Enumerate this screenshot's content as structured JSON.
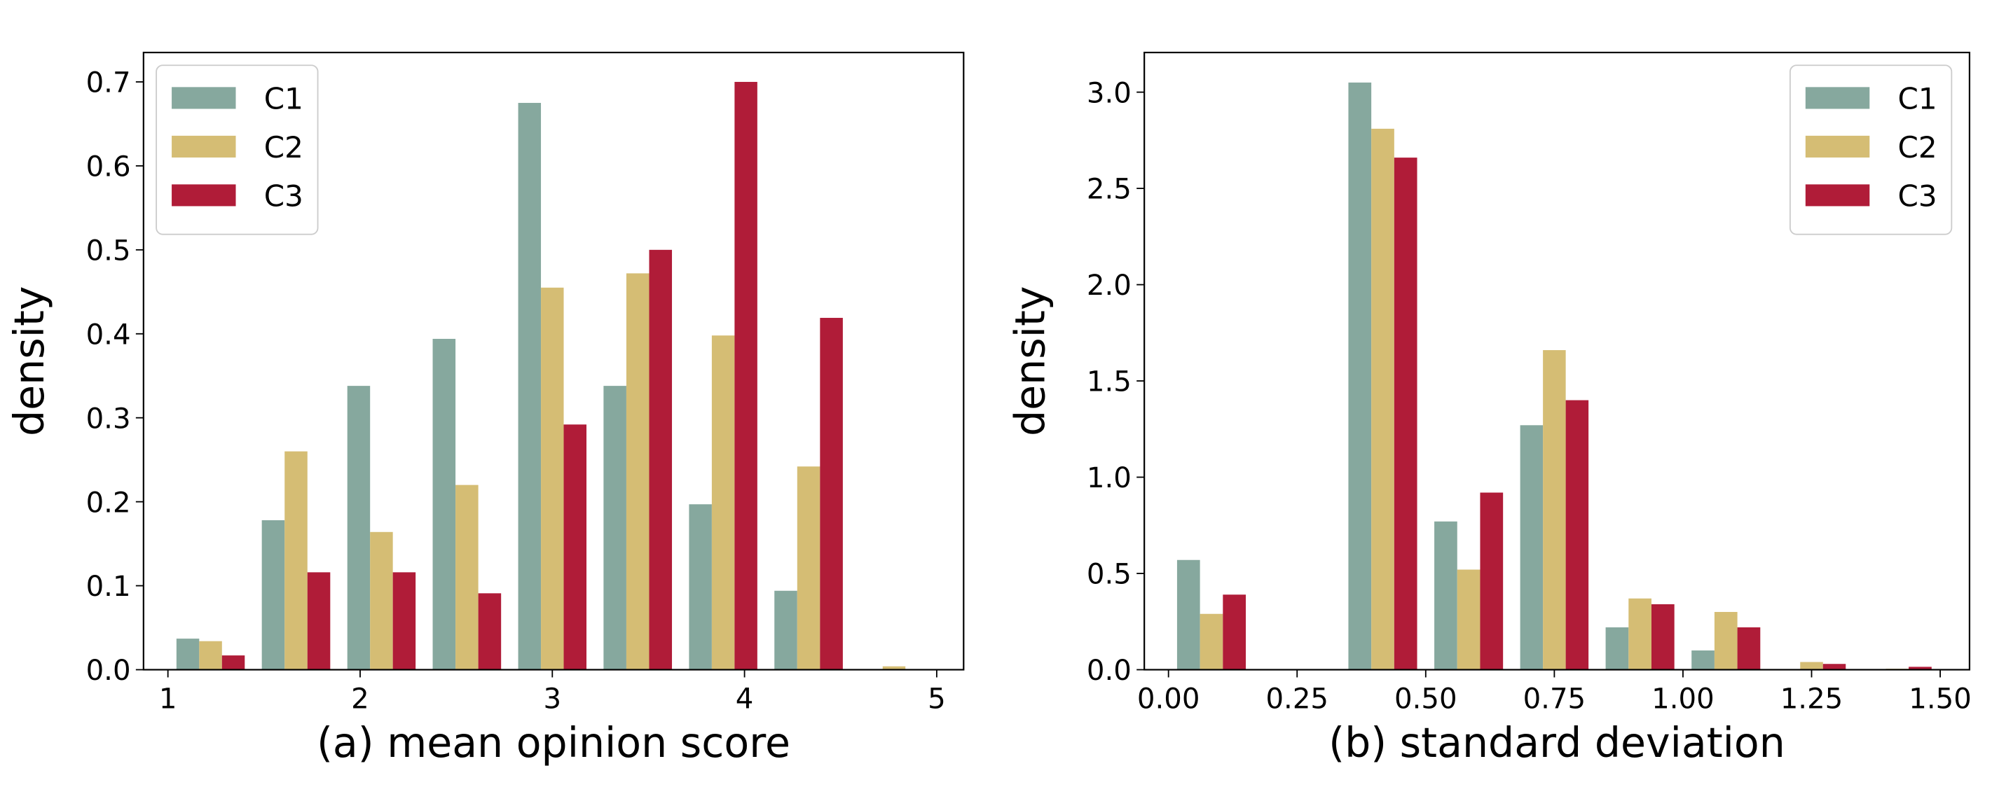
{
  "chart_data": [
    {
      "type": "histogram",
      "xlabel": "(a) mean opinion score",
      "ylabel": "density",
      "bins": [
        1,
        1.444,
        1.889,
        2.333,
        2.778,
        3.222,
        3.667,
        4.111,
        4.556,
        5
      ],
      "series": [
        {
          "name": "C1",
          "color": "#86a89e",
          "values": [
            0.037,
            0.178,
            0.338,
            0.394,
            0.675,
            0.338,
            0.197,
            0.094,
            0
          ]
        },
        {
          "name": "C2",
          "color": "#d5bd74",
          "values": [
            0.034,
            0.26,
            0.164,
            0.22,
            0.455,
            0.472,
            0.398,
            0.242,
            0.004
          ]
        },
        {
          "name": "C3",
          "color": "#b01c38",
          "values": [
            0.017,
            0.116,
            0.116,
            0.091,
            0.292,
            0.5,
            0.7,
            0.419,
            0
          ]
        }
      ],
      "xlim": [
        0.873,
        5.14
      ],
      "xticks": [
        1,
        2,
        3,
        4,
        5
      ],
      "ylim": [
        0,
        0.735
      ],
      "yticks": [
        {
          "value": 0,
          "label": "0.0"
        },
        0.1,
        0.2,
        0.3,
        0.4,
        0.5,
        0.6,
        0.7
      ],
      "legend": "upper left"
    },
    {
      "type": "histogram",
      "xlabel": "(b) standard deviation",
      "ylabel": "density",
      "bins": [
        0,
        0.167,
        0.333,
        0.5,
        0.667,
        0.833,
        1,
        1.167,
        1.333,
        1.5
      ],
      "series": [
        {
          "name": "C1",
          "color": "#86a89e",
          "values": [
            0.57,
            0,
            3.05,
            0.77,
            1.27,
            0.22,
            0.1,
            0,
            0
          ]
        },
        {
          "name": "C2",
          "color": "#d5bd74",
          "values": [
            0.29,
            0,
            2.81,
            0.52,
            1.66,
            0.37,
            0.3,
            0.04,
            0.005
          ]
        },
        {
          "name": "C3",
          "color": "#b01c38",
          "values": [
            0.39,
            0,
            2.66,
            0.92,
            1.4,
            0.34,
            0.22,
            0.03,
            0.015
          ]
        }
      ],
      "xlim": [
        -0.047,
        1.557
      ],
      "xticks": [
        {
          "value": 0,
          "label": "0.00"
        },
        0.25,
        {
          "value": 0.5,
          "label": "0.50"
        },
        0.75,
        {
          "value": 1,
          "label": "1.00"
        },
        1.25,
        {
          "value": 1.5,
          "label": "1.50"
        }
      ],
      "ylim": [
        0,
        3.206
      ],
      "yticks": [
        {
          "value": 0,
          "label": "0.0"
        },
        0.5,
        {
          "value": 1,
          "label": "1.0"
        },
        1.5,
        {
          "value": 2,
          "label": "2.0"
        },
        2.5,
        {
          "value": 3,
          "label": "3.0"
        }
      ],
      "legend": "upper right"
    }
  ]
}
